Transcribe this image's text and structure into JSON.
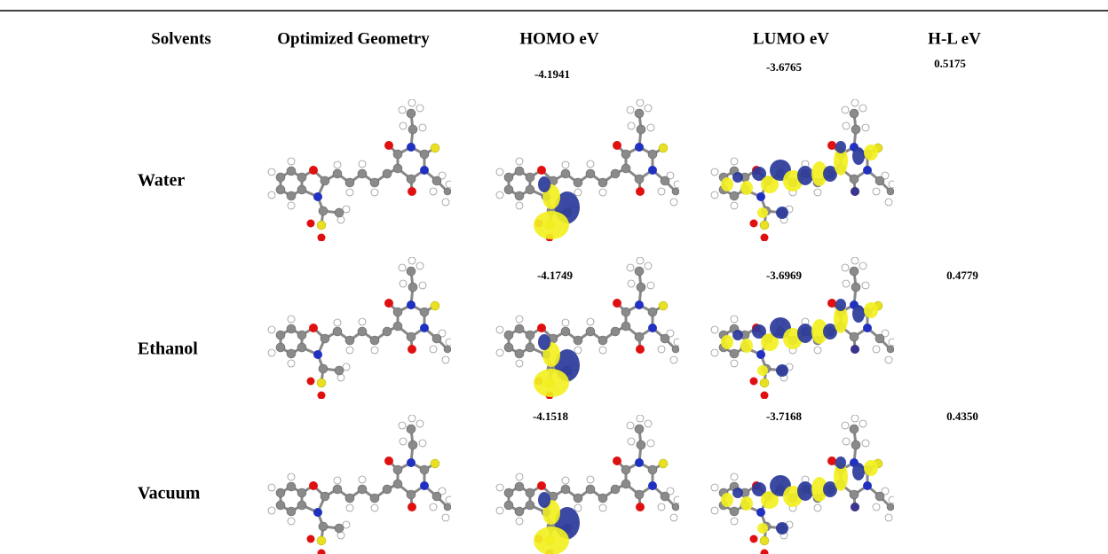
{
  "header": {
    "columns": [
      "Solvents",
      "Optimized Geometry",
      "HOMO eV",
      "LUMO eV",
      "H-L eV"
    ]
  },
  "rows": [
    {
      "solvent": "Water",
      "homo": "-4.1941",
      "lumo": "-3.6765",
      "gap": "0.5175"
    },
    {
      "solvent": "Ethanol",
      "homo": "-4.1749",
      "lumo": "-3.6969",
      "gap": "0.4779"
    },
    {
      "solvent": "Vacuum",
      "homo": "-4.1518",
      "lumo": "-3.7168",
      "gap": "0.4350"
    }
  ]
}
